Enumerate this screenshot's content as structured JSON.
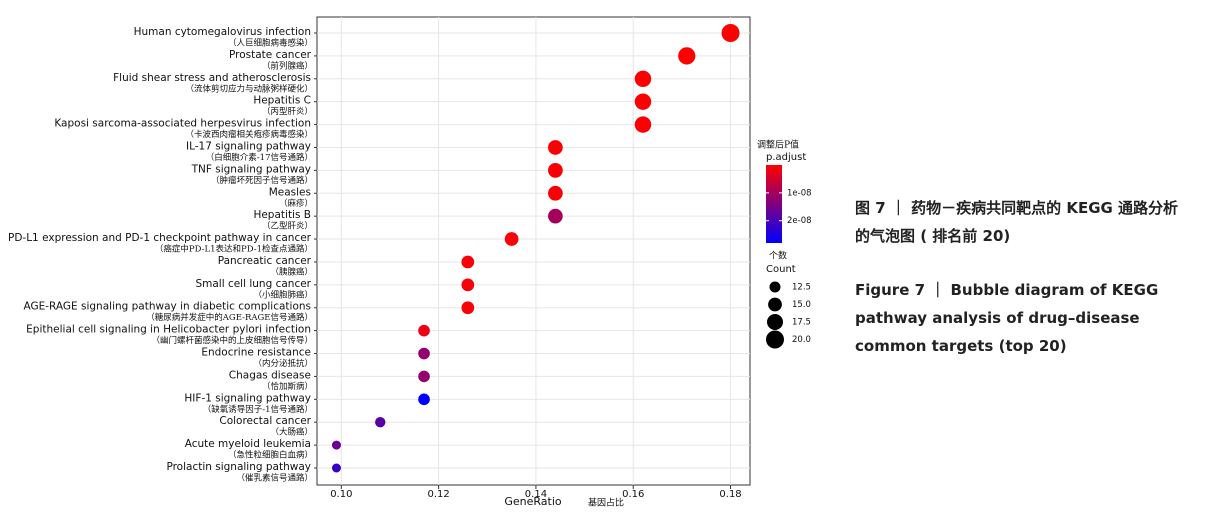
{
  "chart_data": {
    "type": "scatter",
    "x_label": "GeneRatio",
    "x_label_zh": "基因占比",
    "categories": [
      "Human cytomegalovirus infection",
      "Prostate cancer",
      "Fluid shear stress and atherosclerosis",
      "Hepatitis C",
      "Kaposi sarcoma-associated herpesvirus infection",
      "IL-17 signaling pathway",
      "TNF signaling pathway",
      "Measles",
      "Hepatitis B",
      "PD-L1 expression and PD-1 checkpoint pathway in cancer",
      "Pancreatic cancer",
      "Small cell lung cancer",
      "AGE-RAGE signaling pathway in diabetic complications",
      "Epithelial cell signaling in Helicobacter pylori infection",
      "Endocrine resistance",
      "Chagas disease",
      "HIF-1 signaling pathway",
      "Colorectal cancer",
      "Acute myeloid leukemia",
      "Prolactin signaling pathway"
    ],
    "categories_zh": [
      "（人巨细胞病毒感染）",
      "（前列腺癌）",
      "（流体剪切应力与动脉粥样硬化）",
      "（丙型肝炎）",
      "（卡波西肉瘤相关疱疹病毒感染）",
      "（白细胞介素-17信号通路）",
      "（肿瘤坏死因子信号通路）",
      "（麻疹）",
      "（乙型肝炎）",
      "（癌症中PD-L1表达和PD-1检查点通路）",
      "（胰腺癌）",
      "（小细胞肺癌）",
      "（糖尿病并发症中的AGE-RAGE信号通路）",
      "（幽门螺杆菌感染中的上皮细胞信号传导）",
      "（内分泌抵抗）",
      "（恰加斯病）",
      "（缺氧诱导因子-1信号通路）",
      "（大肠癌）",
      "（急性粒细胞白血病）",
      "（催乳素信号通路）"
    ],
    "x": [
      0.18,
      0.171,
      0.162,
      0.162,
      0.162,
      0.144,
      0.144,
      0.144,
      0.144,
      0.135,
      0.126,
      0.126,
      0.126,
      0.117,
      0.117,
      0.117,
      0.117,
      0.108,
      0.099,
      0.099
    ],
    "count": [
      20,
      19,
      18,
      18,
      18,
      16,
      16,
      16,
      16,
      15,
      14,
      14,
      14,
      13,
      13,
      13,
      13,
      12,
      11,
      11
    ],
    "p_adjust": [
      1e-10,
      1e-10,
      2e-10,
      2e-10,
      3e-10,
      5e-10,
      5e-10,
      6e-10,
      1e-08,
      4e-10,
      8e-10,
      8e-10,
      9e-10,
      2e-09,
      1.2e-08,
      1.2e-08,
      2.8e-08,
      1.8e-08,
      1.6e-08,
      2.2e-08
    ],
    "xlim": [
      0.095,
      0.184
    ],
    "xticks": [
      {
        "value": 0.1,
        "label": "0.10"
      },
      0.12,
      0.14,
      0.16,
      0.18
    ],
    "color_legend_title_zh": "调整后P值",
    "color_legend_title": "p.adjust",
    "plim": [
      0,
      2.8e-08
    ],
    "pticks": [
      {
        "value": 1e-08,
        "label": "1e-08"
      },
      {
        "value": 2e-08,
        "label": "2e-08"
      }
    ],
    "color_low": "#ff0000",
    "color_high": "#0000ff",
    "size_legend_title_zh": "个数",
    "size_legend_title": "Count",
    "size_ticks": [
      12.5,
      {
        "value": 15,
        "label": "15.0"
      },
      17.5,
      {
        "value": 20,
        "label": "20.0"
      }
    ],
    "grid": true
  },
  "caption": {
    "zh": "图 7 ｜ 药物－疾病共同靶点的 KEGG 通路分析的气泡图 ( 排名前 20)",
    "en": "Figure 7 ｜ Bubble diagram of KEGG pathway analysis of drug–disease common targets (top 20)"
  }
}
